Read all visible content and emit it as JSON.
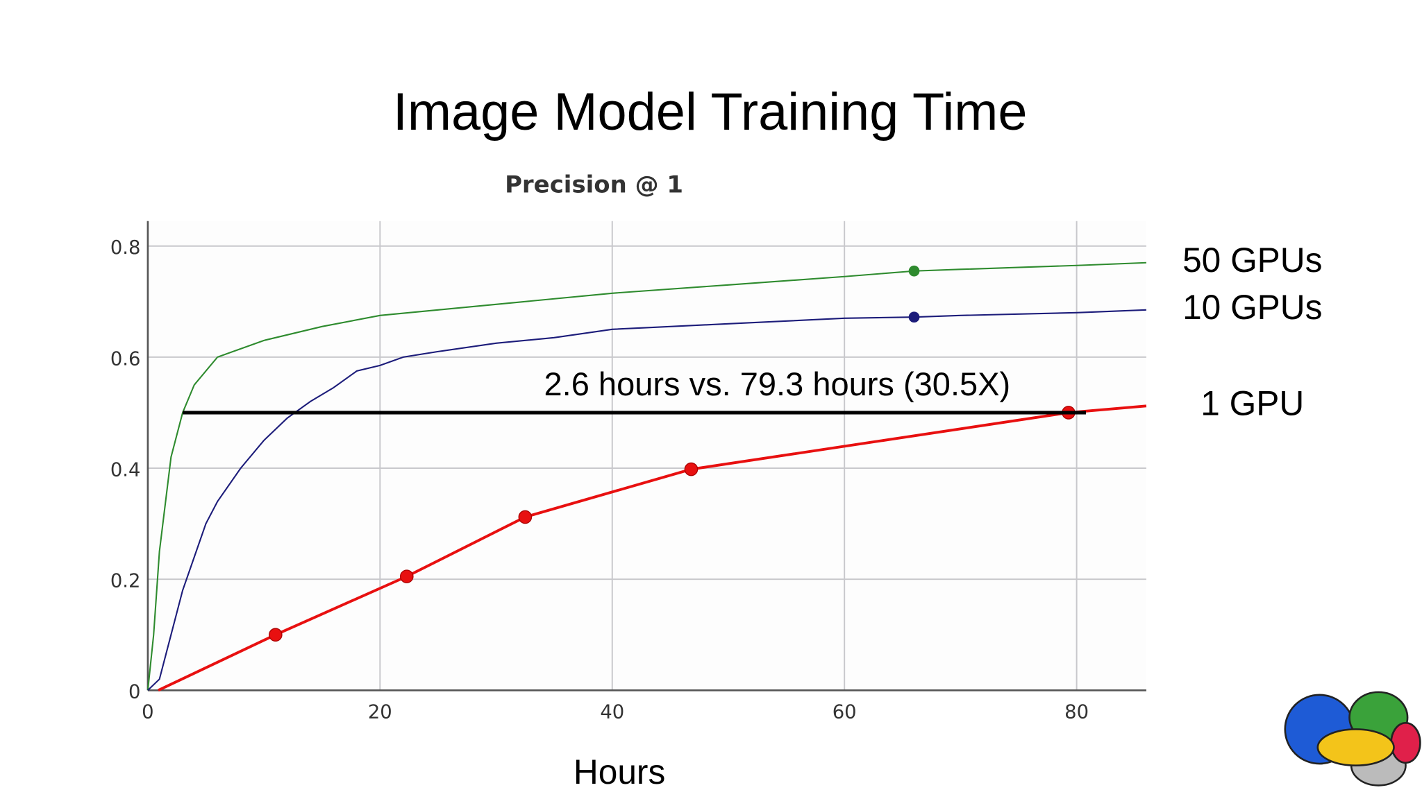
{
  "chart_data": {
    "type": "line",
    "title": "Image Model Training Time",
    "subtitle": "Precision @ 1",
    "x_label": "Hours",
    "annotation": "2.6 hours vs. 79.3 hours (30.5X)",
    "reference_line": {
      "x": [
        3,
        80.8
      ],
      "y": 0.5,
      "color": "#000000"
    },
    "xlim": [
      0,
      86
    ],
    "ylim": [
      0,
      0.845
    ],
    "xticks": [
      0,
      20,
      40,
      60,
      80
    ],
    "yticks": [
      0,
      0.2,
      0.4,
      0.6,
      0.8
    ],
    "grid": true,
    "series": [
      {
        "name": "50 GPUs",
        "color": "#2e8b2e",
        "marker_x": [
          66
        ],
        "x": [
          0,
          0.5,
          1,
          2,
          3,
          4,
          6,
          8,
          10,
          15,
          20,
          25,
          30,
          40,
          50,
          60,
          66,
          70,
          80,
          86
        ],
        "values": [
          0,
          0.1,
          0.25,
          0.42,
          0.5,
          0.55,
          0.6,
          0.615,
          0.63,
          0.655,
          0.675,
          0.685,
          0.695,
          0.715,
          0.73,
          0.745,
          0.755,
          0.758,
          0.765,
          0.77
        ]
      },
      {
        "name": "10 GPUs",
        "color": "#1c1c7a",
        "marker_x": [
          66
        ],
        "x": [
          0,
          1,
          2,
          3,
          4,
          5,
          6,
          8,
          10,
          12,
          14,
          16,
          18,
          20,
          22,
          25,
          30,
          35,
          40,
          45,
          50,
          60,
          66,
          70,
          80,
          86
        ],
        "values": [
          0,
          0.02,
          0.1,
          0.18,
          0.24,
          0.3,
          0.34,
          0.4,
          0.45,
          0.49,
          0.52,
          0.545,
          0.575,
          0.585,
          0.6,
          0.61,
          0.625,
          0.635,
          0.65,
          0.655,
          0.66,
          0.67,
          0.672,
          0.675,
          0.68,
          0.685
        ]
      },
      {
        "name": "1 GPU",
        "color": "#e81010",
        "marker_x": [
          11,
          22.3,
          32.5,
          46.8,
          79.3
        ],
        "x": [
          0.9,
          11,
          22.3,
          32.5,
          46.8,
          79.3,
          86
        ],
        "values": [
          0,
          0.1,
          0.205,
          0.312,
          0.398,
          0.5,
          0.512
        ]
      }
    ]
  }
}
